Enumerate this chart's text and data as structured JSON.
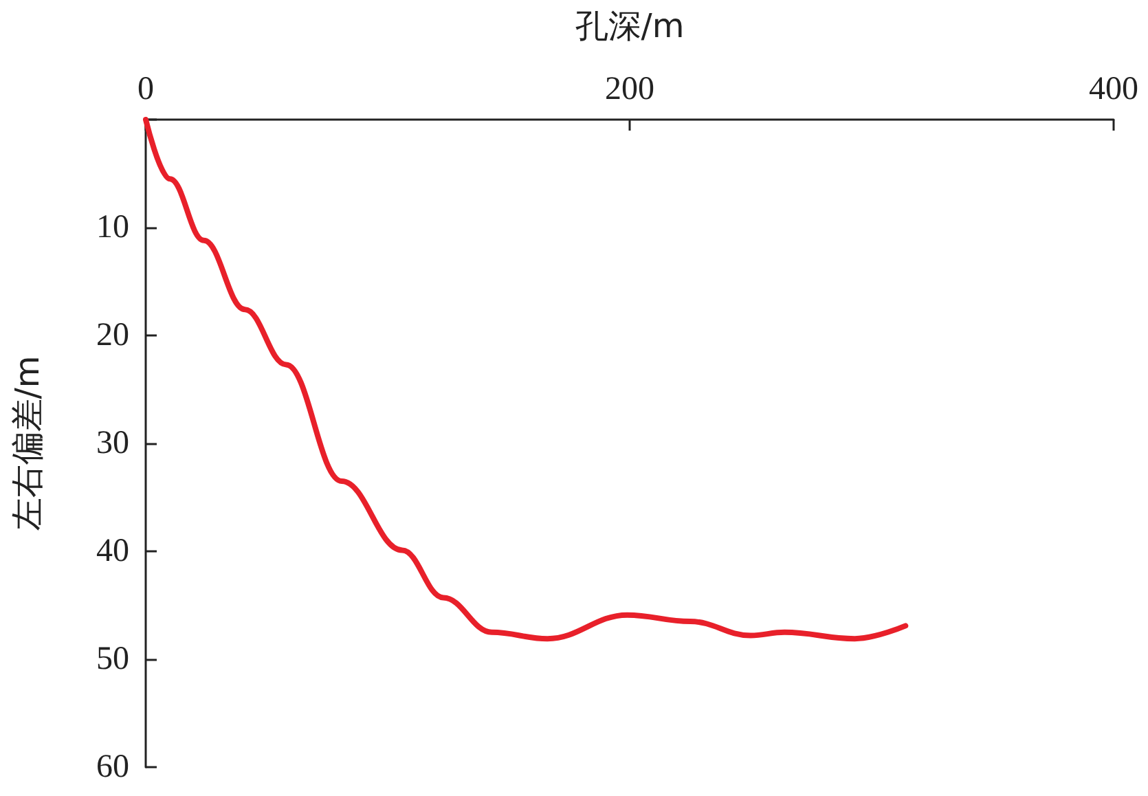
{
  "chart_data": {
    "type": "line",
    "xlabel": "孔深/m",
    "ylabel": "左右偏差/m",
    "series": [
      {
        "color": "#e8202a",
        "x": [
          0,
          10,
          24,
          41,
          58,
          81,
          106,
          123,
          143,
          166,
          199,
          225,
          250,
          264,
          293,
          314
        ],
        "values": [
          0,
          5.5,
          11.2,
          17.6,
          22.7,
          33.5,
          39.9,
          44.3,
          47.5,
          48.1,
          45.9,
          46.5,
          47.8,
          47.5,
          48.1,
          46.9
        ]
      }
    ],
    "xlim": [
      0,
      400
    ],
    "xticks": [
      0,
      200,
      400
    ],
    "ylim": [
      60,
      0
    ],
    "yticks": [
      {
        "value": 0,
        "label": null
      },
      10,
      20,
      30,
      40,
      50,
      60
    ],
    "grid": false,
    "marker": "none",
    "line_style": "solid"
  }
}
